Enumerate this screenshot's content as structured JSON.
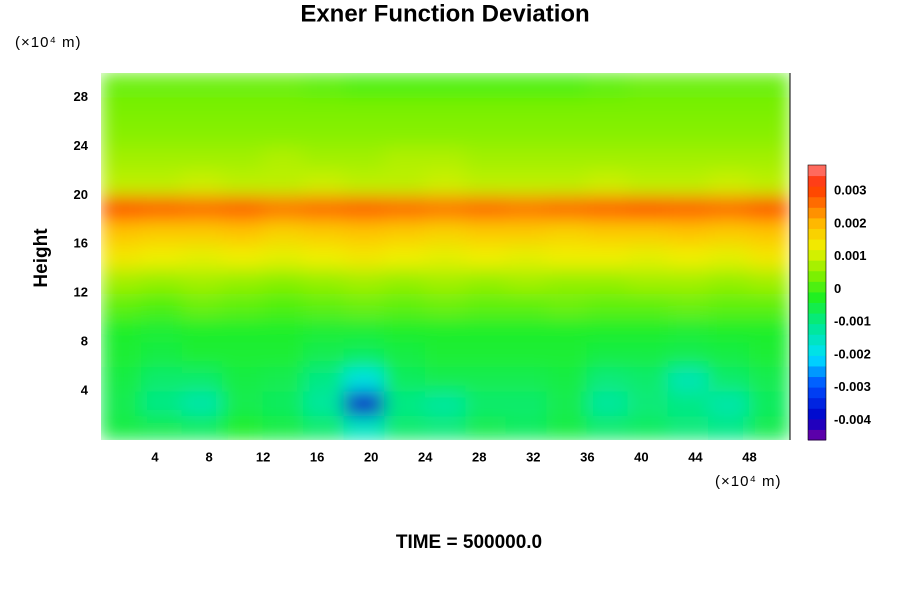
{
  "chart_data": {
    "type": "contour",
    "title": "Exner Function Deviation",
    "ylabel": "Height",
    "yunit": "(×10⁴ m)",
    "xunit": "(×10⁴ m)",
    "footer": "TIME = 500000.0",
    "xlim": [
      0,
      51
    ],
    "ylim": [
      0,
      30
    ],
    "xticks": [
      4,
      8,
      12,
      16,
      20,
      24,
      28,
      32,
      36,
      40,
      44,
      48
    ],
    "yticks": [
      4,
      8,
      12,
      16,
      20,
      24,
      28
    ],
    "grid": false,
    "x": [
      1.5,
      4.5,
      7.5,
      10.5,
      13.5,
      16.5,
      19.5,
      22.5,
      25.5,
      28.5,
      31.5,
      34.5,
      37.5,
      40.5,
      43.5,
      46.5,
      49.5
    ],
    "y": [
      1,
      3,
      5,
      7,
      9,
      11,
      13,
      15,
      17,
      19,
      21,
      23,
      25,
      27,
      29
    ],
    "z": [
      [
        -0.0005,
        -0.0006,
        -0.0007,
        -0.0003,
        -0.0005,
        -0.0008,
        -0.0015,
        -0.0008,
        -0.0009,
        -0.0006,
        -0.0007,
        -0.0005,
        -0.0008,
        -0.0007,
        -0.0009,
        -0.001,
        -0.0006
      ],
      [
        -0.0006,
        -0.001,
        -0.0013,
        -0.0006,
        -0.0007,
        -0.0012,
        -0.004,
        -0.001,
        -0.0012,
        -0.0008,
        -0.0008,
        -0.0006,
        -0.0012,
        -0.0009,
        -0.001,
        -0.0013,
        -0.0007
      ],
      [
        -0.0005,
        -0.0008,
        -0.0008,
        -0.0005,
        -0.0006,
        -0.001,
        -0.0018,
        -0.0007,
        -0.0006,
        -0.0006,
        -0.0006,
        -0.0005,
        -0.0009,
        -0.0008,
        -0.0014,
        -0.0008,
        -0.0006
      ],
      [
        -0.0004,
        -0.0005,
        -0.0004,
        -0.0004,
        -0.0004,
        -0.0006,
        -0.0007,
        -0.0005,
        -0.0004,
        -0.0004,
        -0.0004,
        -0.0004,
        -0.0005,
        -0.0005,
        -0.0006,
        -0.0005,
        -0.0004
      ],
      [
        -0.0003,
        -0.0004,
        -0.0003,
        -0.0003,
        -0.0003,
        -0.0004,
        -0.0004,
        -0.0003,
        -0.0003,
        -0.0003,
        -0.0003,
        -0.0003,
        -0.0003,
        -0.0003,
        -0.0004,
        -0.0003,
        -0.0003
      ],
      [
        0.0002,
        0.0001,
        0.0003,
        0.0002,
        0.0001,
        0.0002,
        0.0003,
        0.0002,
        0.0003,
        0.0002,
        0.0002,
        0.0003,
        0.0002,
        0.0002,
        0.0003,
        0.0002,
        0.0002
      ],
      [
        0.0007,
        0.0006,
        0.0007,
        0.0006,
        0.0005,
        0.0006,
        0.0007,
        0.0006,
        0.0007,
        0.0006,
        0.0007,
        0.0006,
        0.0006,
        0.0007,
        0.0007,
        0.0006,
        0.0007
      ],
      [
        0.0014,
        0.0013,
        0.0012,
        0.0013,
        0.0012,
        0.0013,
        0.0014,
        0.0013,
        0.0012,
        0.0013,
        0.0012,
        0.0013,
        0.0013,
        0.0012,
        0.0013,
        0.0012,
        0.0014
      ],
      [
        0.0019,
        0.0018,
        0.0018,
        0.0019,
        0.0017,
        0.0018,
        0.0019,
        0.0018,
        0.0017,
        0.0018,
        0.0018,
        0.0017,
        0.0018,
        0.0018,
        0.0019,
        0.0018,
        0.0019
      ],
      [
        0.0029,
        0.0028,
        0.0027,
        0.0028,
        0.0026,
        0.0027,
        0.0028,
        0.0027,
        0.0026,
        0.0027,
        0.0026,
        0.0027,
        0.0028,
        0.0029,
        0.0028,
        0.0027,
        0.0029
      ],
      [
        0.0009,
        0.0009,
        0.001,
        0.0009,
        0.0009,
        0.001,
        0.0009,
        0.0009,
        0.001,
        0.0009,
        0.0009,
        0.0009,
        0.001,
        0.0009,
        0.0009,
        0.001,
        0.0009
      ],
      [
        0.0007,
        0.0007,
        0.0007,
        0.0007,
        0.0008,
        0.0007,
        0.0007,
        0.0008,
        0.0008,
        0.0007,
        0.0007,
        0.0007,
        0.0007,
        0.0007,
        0.0007,
        0.0007,
        0.0007
      ],
      [
        0.0005,
        0.0005,
        0.0005,
        0.0005,
        0.0005,
        0.0005,
        0.0005,
        0.0005,
        0.0005,
        0.0005,
        0.0005,
        0.0005,
        0.0005,
        0.0005,
        0.0005,
        0.0005,
        0.0005
      ],
      [
        0.0004,
        0.0004,
        0.0004,
        0.0004,
        0.0004,
        0.0004,
        0.0004,
        0.0004,
        0.0004,
        0.0004,
        0.0004,
        0.0004,
        0.0004,
        0.0004,
        0.0004,
        0.0004,
        0.0004
      ],
      [
        0.0003,
        0.0003,
        0.0003,
        0.0003,
        0.0003,
        0.0002,
        0.0001,
        0.0001,
        0.0001,
        0.0001,
        0.0001,
        0.0001,
        0.0002,
        0.0003,
        0.0003,
        0.0003,
        0.0003
      ]
    ],
    "clim": [
      -0.0046,
      0.0038
    ],
    "colorbar_ticks": [
      0.003,
      0.002,
      0.001,
      0,
      -0.001,
      -0.002,
      -0.003,
      -0.004
    ]
  }
}
